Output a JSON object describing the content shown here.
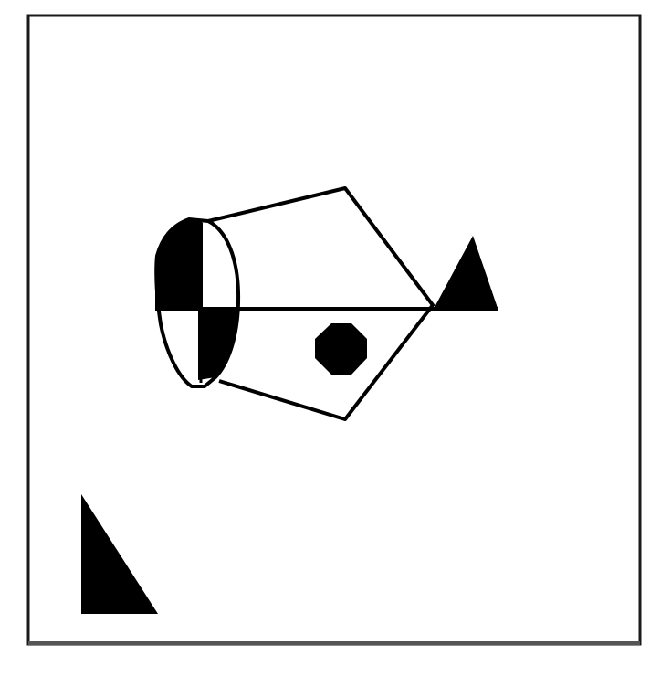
{
  "figure": {
    "colors": {
      "background": "#ffffff",
      "ink": "#000000",
      "frame": "#1a1a1a",
      "bottom_edge": "#555555"
    }
  }
}
